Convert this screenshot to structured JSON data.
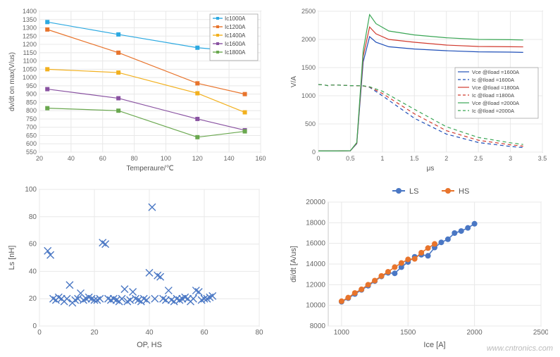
{
  "watermark": "www.cntronics.com",
  "chart1": {
    "type": "line",
    "xlabel": "Temperaure/℃",
    "ylabel": "dv/dt on max(V/us)",
    "label_fontsize": 10,
    "tick_fontsize": 9,
    "xlim": [
      20,
      160
    ],
    "ylim": [
      550,
      1400
    ],
    "xtick_step": 20,
    "ytick_step": 50,
    "background_color": "#ffffff",
    "grid_color": "#e8e8e8",
    "axis_color": "#888888",
    "series": [
      {
        "name": "Ic1000A",
        "color": "#2ca9e1",
        "x": [
          25,
          70,
          120,
          150
        ],
        "y": [
          1335,
          1260,
          1180,
          1155
        ]
      },
      {
        "name": "Ic1200A",
        "color": "#e8742c",
        "x": [
          25,
          70,
          120,
          150
        ],
        "y": [
          1290,
          1150,
          965,
          900
        ]
      },
      {
        "name": "Ic1400A",
        "color": "#f2b01e",
        "x": [
          25,
          70,
          120,
          150
        ],
        "y": [
          1050,
          1030,
          905,
          790
        ]
      },
      {
        "name": "Ic1600A",
        "color": "#8952a1",
        "x": [
          25,
          70,
          120,
          150
        ],
        "y": [
          930,
          875,
          750,
          682
        ]
      },
      {
        "name": "Ic1800A",
        "color": "#6aa84f",
        "x": [
          25,
          70,
          120,
          150
        ],
        "y": [
          815,
          800,
          640,
          675
        ]
      }
    ],
    "marker": "square",
    "marker_size": 3,
    "line_width": 1.2,
    "legend_pos": "top-right"
  },
  "chart2": {
    "type": "line",
    "xlabel": "μs",
    "ylabel": "V/A",
    "label_fontsize": 10,
    "tick_fontsize": 9,
    "xlim": [
      0,
      3.5
    ],
    "ylim": [
      0,
      2500
    ],
    "xtick_step": 0.5,
    "ytick_step": 500,
    "background_color": "#ffffff",
    "grid_color": "#e8e8e8",
    "axis_color": "#888888",
    "line_width": 1.2,
    "series": [
      {
        "name": "Vce @Iload =1600A",
        "color": "#1f4fb8",
        "dash": "solid",
        "x": [
          0,
          0.3,
          0.5,
          0.6,
          0.7,
          0.8,
          0.9,
          1.1,
          1.5,
          2.0,
          2.5,
          3.0,
          3.2
        ],
        "y": [
          20,
          20,
          25,
          150,
          1600,
          2050,
          1950,
          1870,
          1830,
          1800,
          1780,
          1775,
          1770
        ]
      },
      {
        "name": "Ic @Iload =1600A",
        "color": "#1f4fb8",
        "dash": "dash",
        "x": [
          0,
          0.1,
          0.15,
          0.2,
          0.3,
          0.5,
          0.7,
          0.8,
          1.0,
          1.5,
          2.0,
          2.5,
          3.0,
          3.2
        ],
        "y": [
          1200,
          1190,
          1180,
          1190,
          1190,
          1180,
          1175,
          1150,
          1000,
          600,
          320,
          170,
          100,
          80
        ]
      },
      {
        "name": "Vce @Iload =1800A",
        "color": "#d13a2e",
        "dash": "solid",
        "x": [
          0,
          0.3,
          0.5,
          0.6,
          0.7,
          0.8,
          0.9,
          1.1,
          1.5,
          2.0,
          2.5,
          3.0,
          3.2
        ],
        "y": [
          20,
          20,
          25,
          160,
          1700,
          2220,
          2100,
          2000,
          1950,
          1900,
          1875,
          1870,
          1868
        ]
      },
      {
        "name": "Ic @Iload =1800A",
        "color": "#d13a2e",
        "dash": "dash",
        "x": [
          0,
          0.1,
          0.15,
          0.2,
          0.3,
          0.5,
          0.7,
          0.8,
          1.0,
          1.5,
          2.0,
          2.5,
          3.0,
          3.2
        ],
        "y": [
          1200,
          1190,
          1180,
          1190,
          1190,
          1180,
          1175,
          1155,
          1040,
          680,
          380,
          210,
          130,
          105
        ]
      },
      {
        "name": "Vce @Iload =2000A",
        "color": "#3aa655",
        "dash": "solid",
        "x": [
          0,
          0.3,
          0.5,
          0.6,
          0.7,
          0.8,
          0.9,
          1.1,
          1.5,
          2.0,
          2.5,
          3.0,
          3.2
        ],
        "y": [
          20,
          20,
          25,
          170,
          1800,
          2440,
          2280,
          2150,
          2080,
          2030,
          2000,
          1995,
          1990
        ]
      },
      {
        "name": "Ic @Iload =2000A",
        "color": "#3aa655",
        "dash": "dash",
        "x": [
          0,
          0.1,
          0.15,
          0.2,
          0.3,
          0.5,
          0.7,
          0.8,
          1.0,
          1.5,
          2.0,
          2.5,
          3.0,
          3.2
        ],
        "y": [
          1200,
          1190,
          1180,
          1190,
          1190,
          1180,
          1178,
          1160,
          1080,
          760,
          450,
          260,
          165,
          135
        ]
      }
    ],
    "legend_pos": "mid-right"
  },
  "chart3": {
    "type": "scatter",
    "xlabel": "OP, HS",
    "ylabel": "Ls [nH]",
    "label_fontsize": 11,
    "tick_fontsize": 10,
    "xlim": [
      0,
      80
    ],
    "ylim": [
      0,
      100
    ],
    "xtick_step": 20,
    "ytick_step": 20,
    "background_color": "#ffffff",
    "grid_color": "#e8e8e8",
    "axis_color": "#c8c8c8",
    "marker": "x",
    "marker_size": 5,
    "marker_color": "#4a77c4",
    "points": [
      [
        3,
        55
      ],
      [
        4,
        52
      ],
      [
        5,
        20
      ],
      [
        6,
        19
      ],
      [
        7,
        21
      ],
      [
        8,
        20
      ],
      [
        9,
        18
      ],
      [
        10,
        20
      ],
      [
        11,
        30
      ],
      [
        12,
        17
      ],
      [
        13,
        19
      ],
      [
        14,
        20
      ],
      [
        15,
        24
      ],
      [
        16,
        19
      ],
      [
        17,
        20
      ],
      [
        18,
        21
      ],
      [
        19,
        20
      ],
      [
        20,
        19
      ],
      [
        21,
        19
      ],
      [
        22,
        20
      ],
      [
        23,
        61
      ],
      [
        24,
        60
      ],
      [
        25,
        20
      ],
      [
        26,
        19
      ],
      [
        27,
        20
      ],
      [
        28,
        19
      ],
      [
        29,
        18
      ],
      [
        30,
        20
      ],
      [
        31,
        27
      ],
      [
        32,
        18
      ],
      [
        33,
        19
      ],
      [
        34,
        25
      ],
      [
        35,
        20
      ],
      [
        36,
        19
      ],
      [
        37,
        18
      ],
      [
        38,
        20
      ],
      [
        39,
        19
      ],
      [
        40,
        39
      ],
      [
        41,
        87
      ],
      [
        42,
        20
      ],
      [
        43,
        37
      ],
      [
        44,
        36
      ],
      [
        45,
        20
      ],
      [
        46,
        19
      ],
      [
        47,
        26
      ],
      [
        48,
        19
      ],
      [
        49,
        18
      ],
      [
        50,
        20
      ],
      [
        51,
        19
      ],
      [
        52,
        20
      ],
      [
        53,
        21
      ],
      [
        54,
        20
      ],
      [
        55,
        18
      ],
      [
        56,
        20
      ],
      [
        57,
        26
      ],
      [
        58,
        25
      ],
      [
        59,
        19
      ],
      [
        60,
        20
      ],
      [
        61,
        20
      ],
      [
        62,
        21
      ],
      [
        63,
        22
      ]
    ]
  },
  "chart4": {
    "type": "line-scatter",
    "xlabel": "Ice [A]",
    "ylabel": "di/dt [A/us]",
    "label_fontsize": 11,
    "tick_fontsize": 10,
    "xlim": [
      900,
      2500
    ],
    "ylim": [
      8000,
      20000
    ],
    "xticks": [
      1000,
      1500,
      2000,
      2500
    ],
    "yticks": [
      8000,
      10000,
      12000,
      14000,
      16000,
      18000,
      20000
    ],
    "background_color": "#ffffff",
    "grid_color": "#e8e8e8",
    "axis_color": "#c8c8c8",
    "marker_size": 4,
    "line_width": 1.6,
    "legend_pos": "top-center-outside",
    "series": [
      {
        "name": "LS",
        "color": "#4a77c4",
        "marker": "circle",
        "x": [
          1000,
          1050,
          1100,
          1150,
          1200,
          1250,
          1300,
          1350,
          1400,
          1450,
          1500,
          1550,
          1600,
          1650,
          1700,
          1750,
          1800,
          1850,
          1900,
          1950,
          2000
        ],
        "y": [
          10350,
          10700,
          11100,
          11500,
          11900,
          12350,
          12800,
          13150,
          13100,
          13700,
          14200,
          14700,
          14900,
          14800,
          15600,
          16100,
          16400,
          17000,
          17200,
          17500,
          17900
        ]
      },
      {
        "name": "HS",
        "color": "#e8742c",
        "marker": "circle",
        "x": [
          1000,
          1050,
          1100,
          1150,
          1200,
          1250,
          1300,
          1350,
          1400,
          1450,
          1500,
          1550,
          1600,
          1650,
          1700
        ],
        "y": [
          10400,
          10750,
          11200,
          11550,
          12000,
          12400,
          12850,
          13250,
          13700,
          14100,
          14450,
          14500,
          15100,
          15550,
          15950
        ]
      }
    ]
  }
}
